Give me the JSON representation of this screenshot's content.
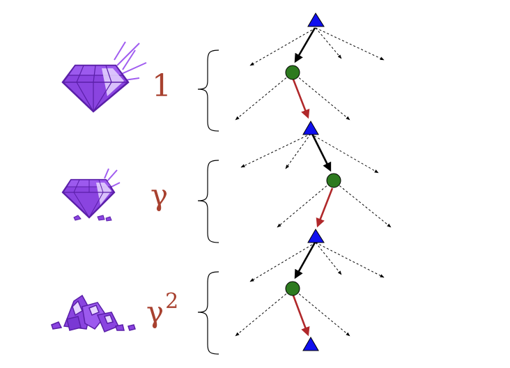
{
  "rows": [
    {
      "gem": "full-gem",
      "discount_label": "1"
    },
    {
      "gem": "chipped-gem",
      "discount_label": "γ"
    },
    {
      "gem": "shattered-gem",
      "discount_label": "γ",
      "discount_power": "2"
    }
  ],
  "colors": {
    "max_node": "#1010ee",
    "chance_node": "#2d7a1f",
    "agent_move_edge": "#000000",
    "environment_edge": "#b0282a",
    "alternative_edge": "#000000",
    "label": "#a8412f",
    "gem_fill": "#8a44e0",
    "gem_dark": "#5a1fa8",
    "gem_highlight": "#e6d6ff",
    "sparkle": "#a05cf0"
  },
  "icons": [
    "diamond-icon",
    "sparkle-icon",
    "gem-shards-icon",
    "brace-icon"
  ]
}
